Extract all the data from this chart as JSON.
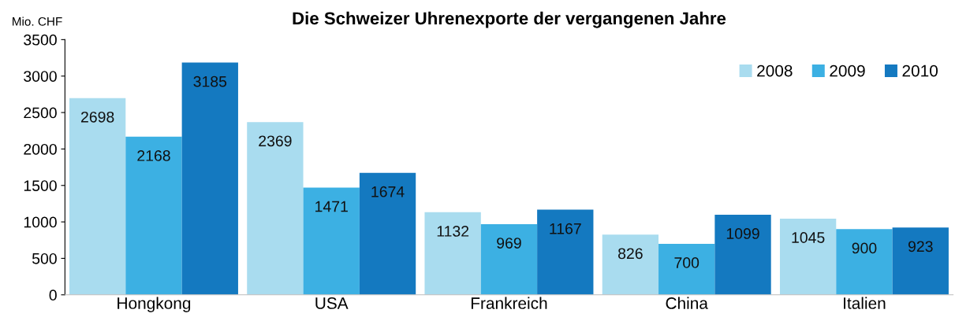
{
  "chart_data": {
    "type": "bar",
    "title": "Die Schweizer Uhrenexporte der vergangenen Jahre",
    "ylabel": "Mio. CHF",
    "categories": [
      "Hongkong",
      "USA",
      "Frankreich",
      "China",
      "Italien"
    ],
    "series": [
      {
        "name": "2008",
        "color": "#a9dcef",
        "values": [
          2698,
          2369,
          1132,
          826,
          1045
        ]
      },
      {
        "name": "2009",
        "color": "#3cb0e3",
        "values": [
          2168,
          1471,
          969,
          700,
          900
        ]
      },
      {
        "name": "2010",
        "color": "#1479c0",
        "values": [
          3185,
          1674,
          1167,
          1099,
          923
        ]
      }
    ],
    "ylim": [
      0,
      3500
    ],
    "yticks": [
      0,
      500,
      1000,
      1500,
      2000,
      2500,
      3000,
      3500
    ],
    "data_labels": true,
    "legend": "top right",
    "grid": false
  }
}
